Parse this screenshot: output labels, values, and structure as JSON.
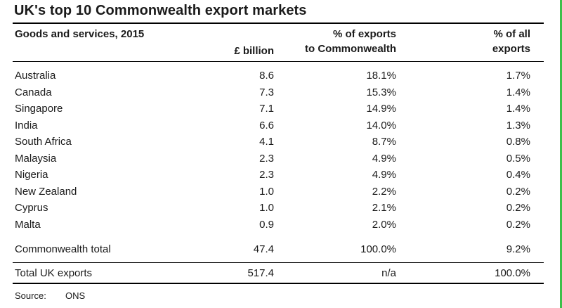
{
  "title": "UK's top 10 Commonwealth export markets",
  "header": {
    "subtitle": "Goods and services, 2015",
    "col_value": "£ billion",
    "col_pct_commonwealth_line1": "% of exports",
    "col_pct_commonwealth_line2": "to Commonwealth",
    "col_pct_all_line1": "% of all",
    "col_pct_all_line2": "exports"
  },
  "rows": [
    {
      "country": "Australia",
      "value": "8.6",
      "pct_commonwealth": "18.1%",
      "pct_all": "1.7%"
    },
    {
      "country": "Canada",
      "value": "7.3",
      "pct_commonwealth": "15.3%",
      "pct_all": "1.4%"
    },
    {
      "country": "Singapore",
      "value": "7.1",
      "pct_commonwealth": "14.9%",
      "pct_all": "1.4%"
    },
    {
      "country": "India",
      "value": "6.6",
      "pct_commonwealth": "14.0%",
      "pct_all": "1.3%"
    },
    {
      "country": "South Africa",
      "value": "4.1",
      "pct_commonwealth": "8.7%",
      "pct_all": "0.8%"
    },
    {
      "country": "Malaysia",
      "value": "2.3",
      "pct_commonwealth": "4.9%",
      "pct_all": "0.5%"
    },
    {
      "country": "Nigeria",
      "value": "2.3",
      "pct_commonwealth": "4.9%",
      "pct_all": "0.4%"
    },
    {
      "country": "New Zealand",
      "value": "1.0",
      "pct_commonwealth": "2.2%",
      "pct_all": "0.2%"
    },
    {
      "country": "Cyprus",
      "value": "1.0",
      "pct_commonwealth": "2.1%",
      "pct_all": "0.2%"
    },
    {
      "country": "Malta",
      "value": "0.9",
      "pct_commonwealth": "2.0%",
      "pct_all": "0.2%"
    }
  ],
  "commonwealth_total": {
    "label": "Commonwealth total",
    "value": "47.4",
    "pct_commonwealth": "100.0%",
    "pct_all": "9.2%"
  },
  "uk_total": {
    "label": "Total UK exports",
    "value": "517.4",
    "pct_commonwealth": "n/a",
    "pct_all": "100.0%"
  },
  "source": {
    "label": "Source:",
    "value": "ONS"
  },
  "colors": {
    "rules": "#000000",
    "text": "#1a1a1a",
    "edge_accent": "#3cc04a"
  }
}
